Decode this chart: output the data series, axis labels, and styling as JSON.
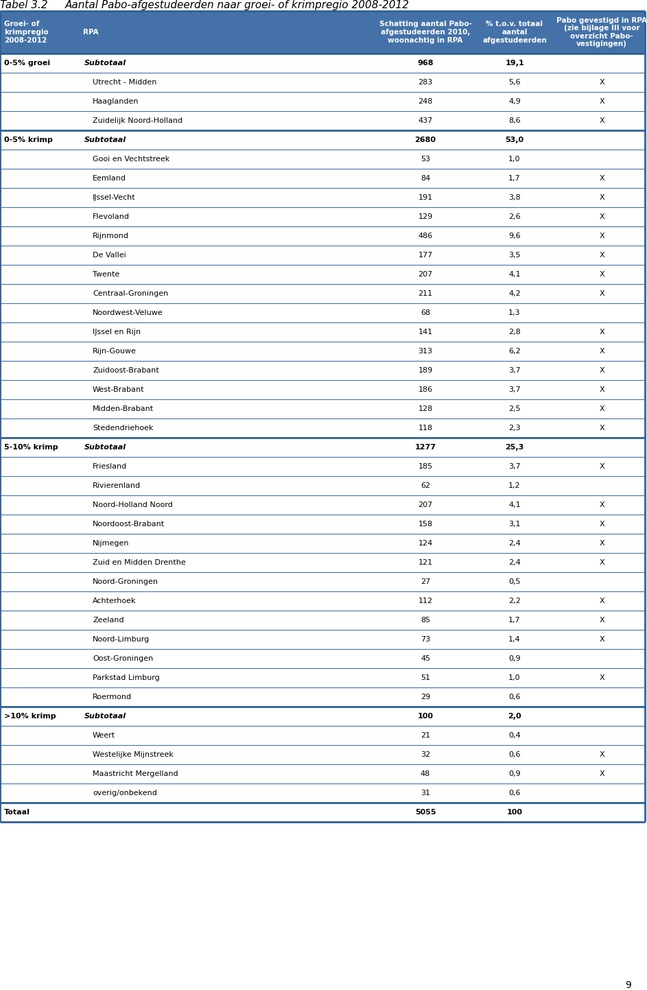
{
  "title_left": "Tabel 3.2",
  "title_right": "Aantal Pabo-afgestudeerden naar groei- of krimpregio 2008-2012",
  "header": [
    "Groei- of\nkrimpregio\n2008-2012",
    "RPA",
    "Schatting aantal Pabo-\nafgestudeerden 2010,\nwoonachtig in RPA",
    "% t.o.v. totaal\naantal\nafgestudeerden",
    "Pabo gevestigd in RPA\n(zie bijlage III voor\noverzicht Pabo-\nvestigingen)"
  ],
  "rows": [
    {
      "group": "0-5% groei",
      "is_subtotal": true,
      "rpa": "Subtotaal",
      "val": "968",
      "pct": "19,1",
      "x": ""
    },
    {
      "group": "",
      "is_subtotal": false,
      "rpa": "Utrecht - Midden",
      "val": "283",
      "pct": "5,6",
      "x": "X"
    },
    {
      "group": "",
      "is_subtotal": false,
      "rpa": "Haaglanden",
      "val": "248",
      "pct": "4,9",
      "x": "X"
    },
    {
      "group": "",
      "is_subtotal": false,
      "rpa": "Zuidelijk Noord-Holland",
      "val": "437",
      "pct": "8,6",
      "x": "X"
    },
    {
      "group": "0-5% krimp",
      "is_subtotal": true,
      "rpa": "Subtotaal",
      "val": "2680",
      "pct": "53,0",
      "x": ""
    },
    {
      "group": "",
      "is_subtotal": false,
      "rpa": "Gooi en Vechtstreek",
      "val": "53",
      "pct": "1,0",
      "x": ""
    },
    {
      "group": "",
      "is_subtotal": false,
      "rpa": "Eemland",
      "val": "84",
      "pct": "1,7",
      "x": "X"
    },
    {
      "group": "",
      "is_subtotal": false,
      "rpa": "IJssel-Vecht",
      "val": "191",
      "pct": "3,8",
      "x": "X"
    },
    {
      "group": "",
      "is_subtotal": false,
      "rpa": "Flevoland",
      "val": "129",
      "pct": "2,6",
      "x": "X"
    },
    {
      "group": "",
      "is_subtotal": false,
      "rpa": "Rijnmond",
      "val": "486",
      "pct": "9,6",
      "x": "X"
    },
    {
      "group": "",
      "is_subtotal": false,
      "rpa": "De Vallei",
      "val": "177",
      "pct": "3,5",
      "x": "X"
    },
    {
      "group": "",
      "is_subtotal": false,
      "rpa": "Twente",
      "val": "207",
      "pct": "4,1",
      "x": "X"
    },
    {
      "group": "",
      "is_subtotal": false,
      "rpa": "Centraal-Groningen",
      "val": "211",
      "pct": "4,2",
      "x": "X"
    },
    {
      "group": "",
      "is_subtotal": false,
      "rpa": "Noordwest-Veluwe",
      "val": "68",
      "pct": "1,3",
      "x": ""
    },
    {
      "group": "",
      "is_subtotal": false,
      "rpa": "IJssel en Rijn",
      "val": "141",
      "pct": "2,8",
      "x": "X"
    },
    {
      "group": "",
      "is_subtotal": false,
      "rpa": "Rijn-Gouwe",
      "val": "313",
      "pct": "6,2",
      "x": "X"
    },
    {
      "group": "",
      "is_subtotal": false,
      "rpa": "Zuidoost-Brabant",
      "val": "189",
      "pct": "3,7",
      "x": "X"
    },
    {
      "group": "",
      "is_subtotal": false,
      "rpa": "West-Brabant",
      "val": "186",
      "pct": "3,7",
      "x": "X"
    },
    {
      "group": "",
      "is_subtotal": false,
      "rpa": "Midden-Brabant",
      "val": "128",
      "pct": "2,5",
      "x": "X"
    },
    {
      "group": "",
      "is_subtotal": false,
      "rpa": "Stedendriehoek",
      "val": "118",
      "pct": "2,3",
      "x": "X"
    },
    {
      "group": "5-10% krimp",
      "is_subtotal": true,
      "rpa": "Subtotaal",
      "val": "1277",
      "pct": "25,3",
      "x": ""
    },
    {
      "group": "",
      "is_subtotal": false,
      "rpa": "Friesland",
      "val": "185",
      "pct": "3,7",
      "x": "X"
    },
    {
      "group": "",
      "is_subtotal": false,
      "rpa": "Rivierenland",
      "val": "62",
      "pct": "1,2",
      "x": ""
    },
    {
      "group": "",
      "is_subtotal": false,
      "rpa": "Noord-Holland Noord",
      "val": "207",
      "pct": "4,1",
      "x": "X"
    },
    {
      "group": "",
      "is_subtotal": false,
      "rpa": "Noordoost-Brabant",
      "val": "158",
      "pct": "3,1",
      "x": "X"
    },
    {
      "group": "",
      "is_subtotal": false,
      "rpa": "Nijmegen",
      "val": "124",
      "pct": "2,4",
      "x": "X"
    },
    {
      "group": "",
      "is_subtotal": false,
      "rpa": "Zuid en Midden Drenthe",
      "val": "121",
      "pct": "2,4",
      "x": "X"
    },
    {
      "group": "",
      "is_subtotal": false,
      "rpa": "Noord-Groningen",
      "val": "27",
      "pct": "0,5",
      "x": ""
    },
    {
      "group": "",
      "is_subtotal": false,
      "rpa": "Achterhoek",
      "val": "112",
      "pct": "2,2",
      "x": "X"
    },
    {
      "group": "",
      "is_subtotal": false,
      "rpa": "Zeeland",
      "val": "85",
      "pct": "1,7",
      "x": "X"
    },
    {
      "group": "",
      "is_subtotal": false,
      "rpa": "Noord-Limburg",
      "val": "73",
      "pct": "1,4",
      "x": "X"
    },
    {
      "group": "",
      "is_subtotal": false,
      "rpa": "Oost-Groningen",
      "val": "45",
      "pct": "0,9",
      "x": ""
    },
    {
      "group": "",
      "is_subtotal": false,
      "rpa": "Parkstad Limburg",
      "val": "51",
      "pct": "1,0",
      "x": "X"
    },
    {
      "group": "",
      "is_subtotal": false,
      "rpa": "Roermond",
      "val": "29",
      "pct": "0,6",
      "x": ""
    },
    {
      "group": ">10% krimp",
      "is_subtotal": true,
      "rpa": "Subtotaal",
      "val": "100",
      "pct": "2,0",
      "x": ""
    },
    {
      "group": "",
      "is_subtotal": false,
      "rpa": "Weert",
      "val": "21",
      "pct": "0,4",
      "x": ""
    },
    {
      "group": "",
      "is_subtotal": false,
      "rpa": "Westelijke Mijnstreek",
      "val": "32",
      "pct": "0,6",
      "x": "X"
    },
    {
      "group": "",
      "is_subtotal": false,
      "rpa": "Maastricht Mergelland",
      "val": "48",
      "pct": "0,9",
      "x": "X"
    },
    {
      "group": "",
      "is_subtotal": false,
      "rpa": "overig/onbekend",
      "val": "31",
      "pct": "0,6",
      "x": ""
    }
  ],
  "totaal_row": {
    "group": "Totaal",
    "rpa": "",
    "val": "5055",
    "pct": "100",
    "x": ""
  },
  "page_num": "9",
  "header_bg": "#4472a8",
  "line_color_thick": "#2e6096",
  "line_color_thin": "#4472a8",
  "title_color": "#000000"
}
